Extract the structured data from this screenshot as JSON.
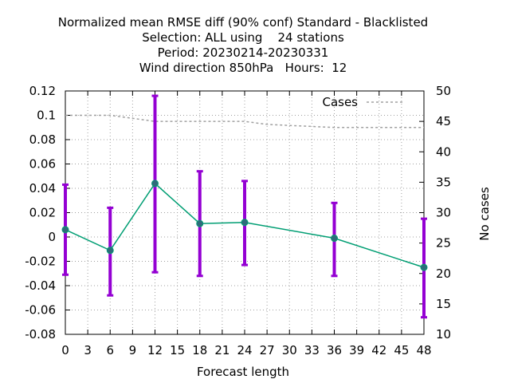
{
  "chart_data": {
    "type": "line",
    "title_lines": [
      "Normalized mean RMSE diff (90% conf) Standard - Blacklisted",
      "Selection: ALL using    24 stations",
      "Period: 20230214-20230331",
      "Wind direction 850hPa   Hours:  12"
    ],
    "xlabel": "Forecast length",
    "ylabel": "",
    "y2label": "No cases",
    "xlim": [
      0,
      48
    ],
    "ylim": [
      -0.08,
      0.12
    ],
    "y2lim": [
      10,
      50
    ],
    "xticks": [
      0,
      3,
      6,
      9,
      12,
      15,
      18,
      21,
      24,
      27,
      30,
      33,
      36,
      39,
      42,
      45,
      48
    ],
    "yticks": [
      "-0.08",
      "-0.06",
      "-0.04",
      "-0.02",
      "0",
      "0.02",
      "0.04",
      "0.06",
      "0.08",
      "0.1",
      "0.12"
    ],
    "y2ticks": [
      10,
      15,
      20,
      25,
      30,
      35,
      40,
      45,
      50
    ],
    "grid": true,
    "legend_position": "top-right",
    "series": [
      {
        "x": [
          0,
          6,
          12,
          18,
          24,
          36,
          48
        ],
        "values": [
          0.006,
          -0.011,
          0.044,
          0.011,
          0.012,
          -0.001,
          -0.025
        ],
        "err_low": [
          -0.031,
          -0.048,
          -0.029,
          -0.032,
          -0.023,
          -0.032,
          -0.066
        ],
        "err_high": [
          0.043,
          0.024,
          0.116,
          0.054,
          0.046,
          0.028,
          0.015
        ],
        "color": "#009e73",
        "errorbar_color": "#9400d3"
      },
      {
        "name": "Cases",
        "axis": "y2",
        "style": "dashed",
        "color": "#a0a0a0",
        "x": [
          0,
          6,
          9,
          12,
          18,
          24,
          27,
          36,
          42,
          48
        ],
        "values": [
          46,
          46,
          45.5,
          45,
          45,
          45,
          44.5,
          44,
          44,
          44
        ]
      }
    ]
  }
}
